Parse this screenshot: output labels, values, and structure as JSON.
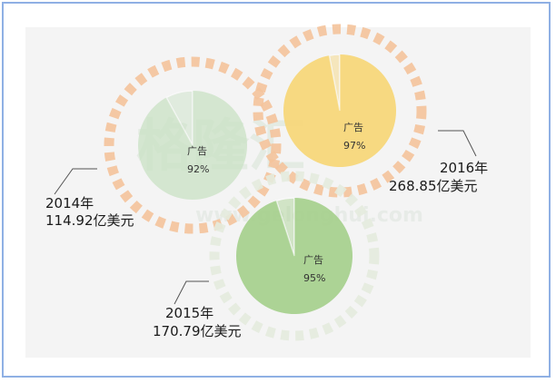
{
  "watermark": {
    "text": "格隆汇",
    "url": "www.gelonghui.com"
  },
  "chart_data": {
    "type": "pie",
    "title": "",
    "charts": [
      {
        "id": "2014",
        "year_label": "2014年",
        "total_label": "114.92亿美元",
        "total": 114.92,
        "slice_label": "广告",
        "slice_value_label": "92%",
        "slice_value": 92,
        "pie_color": "#c9e1c4",
        "ring_color": "#f4c39b"
      },
      {
        "id": "2016",
        "year_label": "2016年",
        "total_label": "268.85亿美元",
        "total": 268.85,
        "slice_label": "广告",
        "slice_value_label": "97%",
        "slice_value": 97,
        "pie_color": "#f7d77a",
        "ring_color": "#f4c39b"
      },
      {
        "id": "2015",
        "year_label": "2015年",
        "total_label": "170.79亿美元",
        "total": 170.79,
        "slice_label": "广告",
        "slice_value_label": "95%",
        "slice_value": 95,
        "pie_color": "#a8d18f",
        "ring_color": "#e4ebde"
      }
    ]
  }
}
